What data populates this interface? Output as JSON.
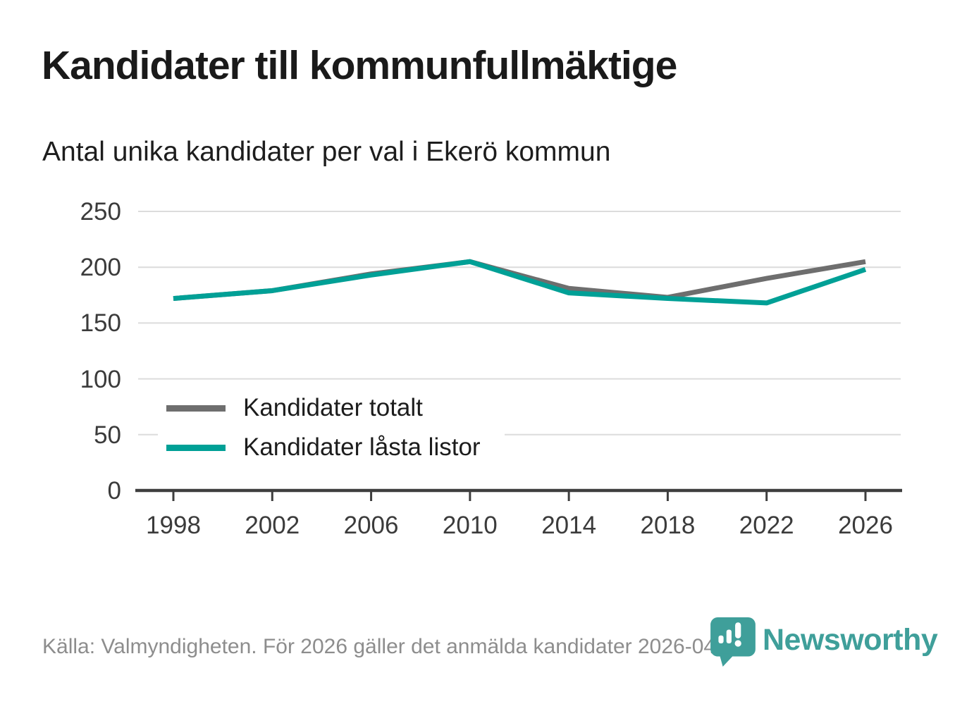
{
  "header": {
    "title": "Kandidater till kommunfullmäktige",
    "subtitle": "Antal unika kandidater per val i Ekerö kommun"
  },
  "chart_data": {
    "type": "line",
    "title": "Kandidater till kommunfullmäktige",
    "subtitle": "Antal unika kandidater per val i Ekerö kommun",
    "x": [
      1998,
      2002,
      2006,
      2010,
      2014,
      2018,
      2022,
      2026
    ],
    "series": [
      {
        "name": "Kandidater totalt",
        "color": "#6e6e6e",
        "values": [
          172,
          179,
          194,
          205,
          181,
          173,
          190,
          205
        ]
      },
      {
        "name": "Kandidater låsta listor",
        "color": "#00a096",
        "values": [
          172,
          179,
          193,
          205,
          177,
          172,
          168,
          198
        ]
      }
    ],
    "xlabel": "",
    "ylabel": "",
    "ylim": [
      0,
      250
    ],
    "y_ticks": [
      0,
      50,
      100,
      150,
      200,
      250
    ],
    "grid": "horizontal",
    "legend_position": "inside-left-middle"
  },
  "footer": {
    "source_text": "Källa: Valmyndigheten. För 2026 gäller det anmälda kandidater 2026-04-10.",
    "brand": "Newsworthy",
    "brand_color": "#3f9f9a"
  }
}
